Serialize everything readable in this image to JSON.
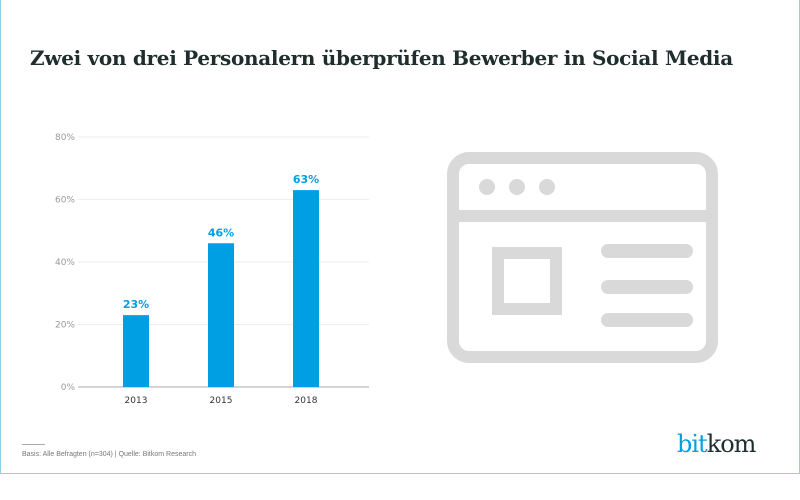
{
  "title": "Zwei von drei Personalern überprüfen Bewerber in Social Media",
  "footnote": "Basis: Alle Befragten (n=304) | Quelle: Bitkom Research",
  "logo": {
    "part1": "bit",
    "part2": "kom"
  },
  "colors": {
    "bar": "#009fe3",
    "icon": "#d9d9d9",
    "title": "#1f2d2d",
    "frame": "#8fd0ea"
  },
  "icon": "browser-window-icon",
  "chart_data": {
    "type": "bar",
    "categories": [
      "2013",
      "2015",
      "2018"
    ],
    "values": [
      23,
      46,
      63
    ],
    "data_labels": [
      "23%",
      "46%",
      "63%"
    ],
    "yticks": [
      0,
      20,
      40,
      60,
      80
    ],
    "ytick_labels": [
      "0%",
      "20%",
      "40%",
      "60%",
      "80%"
    ],
    "ylim": [
      0,
      80
    ],
    "grid": true
  }
}
